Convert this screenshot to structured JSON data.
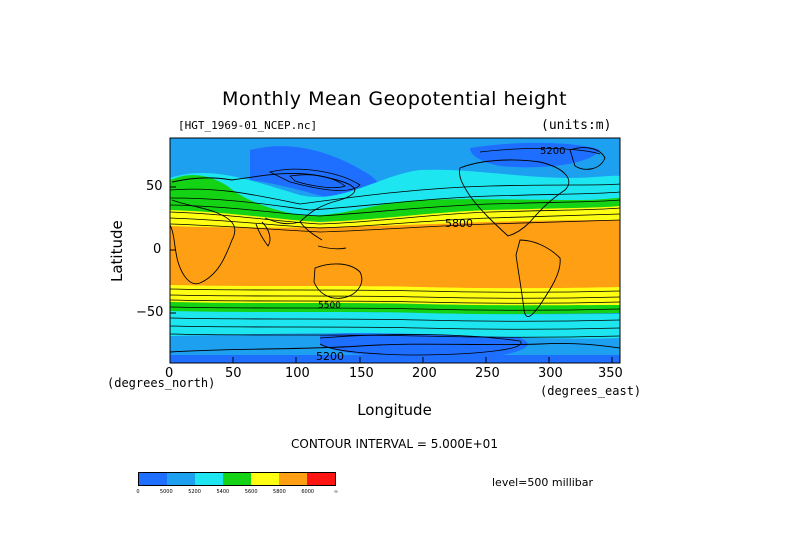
{
  "figure": {
    "title": "Monthly Mean Geopotential height",
    "filename": "[HGT_1969-01_NCEP.nc]",
    "units": "(units:m)",
    "ylabel": "Latitude",
    "xlabel": "Longitude",
    "x_unit_left": "(degrees_north)",
    "x_unit_right": "(degrees_east)",
    "contour_interval": "CONTOUR INTERVAL = 5.000E+01",
    "level": "level=500 millibar"
  },
  "map": {
    "x_ticks": [
      "0",
      "50",
      "100",
      "150",
      "200",
      "250",
      "300",
      "350"
    ],
    "y_ticks": [
      "50",
      "0",
      "−50"
    ],
    "contour_labels": [
      "5800",
      "5200",
      "5200",
      "5500"
    ]
  },
  "colorbar": {
    "colors": [
      "#1e6eff",
      "#1ea0f0",
      "#1ee6f0",
      "#14d214",
      "#ffff14",
      "#ffa014",
      "#ff1414"
    ],
    "labels": [
      "0",
      "5000",
      "5200",
      "5400",
      "5600",
      "5800",
      "6000",
      "∞"
    ]
  }
}
